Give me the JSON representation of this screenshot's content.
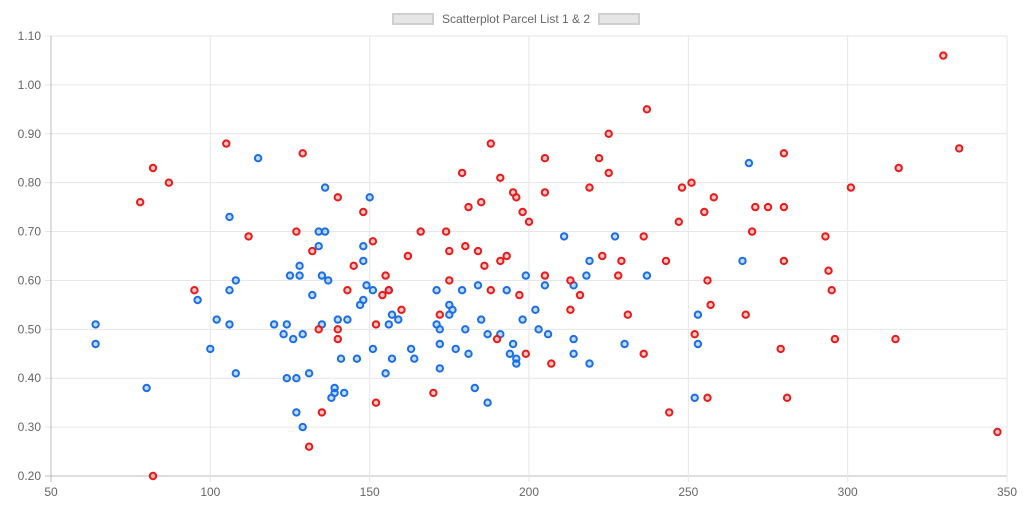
{
  "chart_data": {
    "type": "scatter",
    "title": "Scatterplot Parcel List 1 & 2",
    "xlim": [
      50,
      350
    ],
    "ylim": [
      0.2,
      1.1
    ],
    "x_ticks": [
      "50",
      "100",
      "150",
      "200",
      "250",
      "300",
      "350"
    ],
    "y_ticks": [
      "0.20",
      "0.30",
      "0.40",
      "0.50",
      "0.60",
      "0.70",
      "0.80",
      "0.90",
      "1.00",
      "1.10"
    ],
    "grid": true,
    "legend_position": "top-center",
    "series": [
      {
        "color": "#1a6fe8",
        "points": [
          [
            64,
            0.51
          ],
          [
            64,
            0.47
          ],
          [
            80,
            0.38
          ],
          [
            96,
            0.56
          ],
          [
            100,
            0.46
          ],
          [
            102,
            0.52
          ],
          [
            106,
            0.58
          ],
          [
            106,
            0.51
          ],
          [
            106,
            0.73
          ],
          [
            108,
            0.6
          ],
          [
            108,
            0.41
          ],
          [
            115,
            0.85
          ],
          [
            120,
            0.51
          ],
          [
            123,
            0.49
          ],
          [
            124,
            0.51
          ],
          [
            124,
            0.4
          ],
          [
            125,
            0.61
          ],
          [
            126,
            0.48
          ],
          [
            127,
            0.4
          ],
          [
            127,
            0.33
          ],
          [
            128,
            0.63
          ],
          [
            128,
            0.61
          ],
          [
            129,
            0.49
          ],
          [
            129,
            0.3
          ],
          [
            131,
            0.41
          ],
          [
            132,
            0.57
          ],
          [
            134,
            0.67
          ],
          [
            134,
            0.7
          ],
          [
            135,
            0.61
          ],
          [
            135,
            0.51
          ],
          [
            136,
            0.79
          ],
          [
            136,
            0.7
          ],
          [
            137,
            0.6
          ],
          [
            138,
            0.36
          ],
          [
            139,
            0.38
          ],
          [
            139,
            0.37
          ],
          [
            140,
            0.52
          ],
          [
            141,
            0.44
          ],
          [
            142,
            0.37
          ],
          [
            143,
            0.52
          ],
          [
            146,
            0.44
          ],
          [
            147,
            0.55
          ],
          [
            148,
            0.64
          ],
          [
            148,
            0.67
          ],
          [
            148,
            0.56
          ],
          [
            149,
            0.59
          ],
          [
            150,
            0.77
          ],
          [
            151,
            0.58
          ],
          [
            151,
            0.46
          ],
          [
            155,
            0.41
          ],
          [
            156,
            0.51
          ],
          [
            156,
            0.58
          ],
          [
            157,
            0.53
          ],
          [
            157,
            0.44
          ],
          [
            159,
            0.52
          ],
          [
            163,
            0.46
          ],
          [
            164,
            0.44
          ],
          [
            171,
            0.51
          ],
          [
            171,
            0.58
          ],
          [
            172,
            0.5
          ],
          [
            172,
            0.47
          ],
          [
            172,
            0.42
          ],
          [
            175,
            0.53
          ],
          [
            175,
            0.55
          ],
          [
            176,
            0.54
          ],
          [
            177,
            0.46
          ],
          [
            179,
            0.58
          ],
          [
            180,
            0.5
          ],
          [
            181,
            0.45
          ],
          [
            183,
            0.38
          ],
          [
            184,
            0.59
          ],
          [
            185,
            0.52
          ],
          [
            187,
            0.35
          ],
          [
            187,
            0.49
          ],
          [
            191,
            0.49
          ],
          [
            193,
            0.58
          ],
          [
            194,
            0.45
          ],
          [
            195,
            0.47
          ],
          [
            196,
            0.44
          ],
          [
            196,
            0.43
          ],
          [
            198,
            0.52
          ],
          [
            199,
            0.61
          ],
          [
            202,
            0.54
          ],
          [
            203,
            0.5
          ],
          [
            205,
            0.59
          ],
          [
            206,
            0.49
          ],
          [
            211,
            0.69
          ],
          [
            214,
            0.59
          ],
          [
            214,
            0.48
          ],
          [
            214,
            0.45
          ],
          [
            218,
            0.61
          ],
          [
            219,
            0.64
          ],
          [
            219,
            0.43
          ],
          [
            227,
            0.69
          ],
          [
            230,
            0.47
          ],
          [
            237,
            0.61
          ],
          [
            252,
            0.36
          ],
          [
            253,
            0.53
          ],
          [
            253,
            0.47
          ],
          [
            267,
            0.64
          ],
          [
            269,
            0.84
          ]
        ]
      },
      {
        "color": "#e81a1a",
        "points": [
          [
            78,
            0.76
          ],
          [
            82,
            0.83
          ],
          [
            82,
            0.2
          ],
          [
            87,
            0.8
          ],
          [
            95,
            0.58
          ],
          [
            105,
            0.88
          ],
          [
            112,
            0.69
          ],
          [
            127,
            0.7
          ],
          [
            129,
            0.86
          ],
          [
            131,
            0.26
          ],
          [
            132,
            0.66
          ],
          [
            134,
            0.5
          ],
          [
            135,
            0.33
          ],
          [
            140,
            0.77
          ],
          [
            140,
            0.48
          ],
          [
            140,
            0.5
          ],
          [
            143,
            0.58
          ],
          [
            145,
            0.63
          ],
          [
            148,
            0.74
          ],
          [
            151,
            0.68
          ],
          [
            152,
            0.51
          ],
          [
            152,
            0.35
          ],
          [
            154,
            0.57
          ],
          [
            155,
            0.61
          ],
          [
            156,
            0.58
          ],
          [
            160,
            0.54
          ],
          [
            162,
            0.65
          ],
          [
            166,
            0.7
          ],
          [
            170,
            0.37
          ],
          [
            172,
            0.53
          ],
          [
            174,
            0.7
          ],
          [
            175,
            0.66
          ],
          [
            175,
            0.6
          ],
          [
            179,
            0.82
          ],
          [
            180,
            0.67
          ],
          [
            181,
            0.75
          ],
          [
            184,
            0.66
          ],
          [
            185,
            0.76
          ],
          [
            186,
            0.63
          ],
          [
            188,
            0.88
          ],
          [
            188,
            0.58
          ],
          [
            190,
            0.48
          ],
          [
            191,
            0.64
          ],
          [
            191,
            0.81
          ],
          [
            193,
            0.65
          ],
          [
            195,
            0.78
          ],
          [
            196,
            0.77
          ],
          [
            197,
            0.57
          ],
          [
            198,
            0.74
          ],
          [
            199,
            0.45
          ],
          [
            200,
            0.72
          ],
          [
            205,
            0.61
          ],
          [
            205,
            0.85
          ],
          [
            205,
            0.78
          ],
          [
            207,
            0.43
          ],
          [
            213,
            0.6
          ],
          [
            213,
            0.54
          ],
          [
            216,
            0.57
          ],
          [
            219,
            0.79
          ],
          [
            222,
            0.85
          ],
          [
            223,
            0.65
          ],
          [
            225,
            0.82
          ],
          [
            225,
            0.9
          ],
          [
            228,
            0.61
          ],
          [
            229,
            0.64
          ],
          [
            231,
            0.53
          ],
          [
            236,
            0.69
          ],
          [
            236,
            0.45
          ],
          [
            237,
            0.95
          ],
          [
            243,
            0.64
          ],
          [
            244,
            0.33
          ],
          [
            247,
            0.72
          ],
          [
            248,
            0.79
          ],
          [
            251,
            0.8
          ],
          [
            252,
            0.49
          ],
          [
            255,
            0.74
          ],
          [
            256,
            0.6
          ],
          [
            256,
            0.36
          ],
          [
            257,
            0.55
          ],
          [
            258,
            0.77
          ],
          [
            268,
            0.53
          ],
          [
            270,
            0.7
          ],
          [
            271,
            0.75
          ],
          [
            275,
            0.75
          ],
          [
            279,
            0.46
          ],
          [
            280,
            0.75
          ],
          [
            280,
            0.64
          ],
          [
            280,
            0.86
          ],
          [
            281,
            0.36
          ],
          [
            293,
            0.69
          ],
          [
            294,
            0.62
          ],
          [
            295,
            0.58
          ],
          [
            296,
            0.48
          ],
          [
            301,
            0.79
          ],
          [
            315,
            0.48
          ],
          [
            316,
            0.83
          ],
          [
            330,
            1.06
          ],
          [
            335,
            0.87
          ],
          [
            347,
            0.29
          ]
        ]
      }
    ]
  }
}
